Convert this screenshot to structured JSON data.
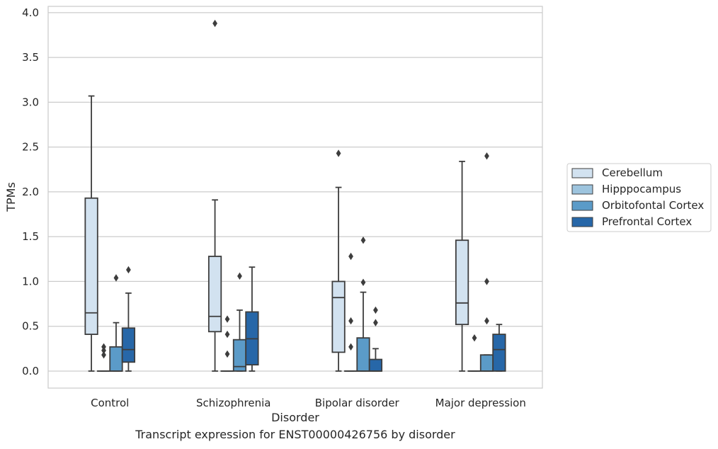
{
  "chart_data": {
    "type": "box",
    "caption": "Transcript expression for ENST00000426756 by disorder",
    "xlabel": "Disorder",
    "ylabel": "TPMs",
    "ylim": [
      -0.19,
      4.07
    ],
    "yticks": [
      "0.0",
      "0.5",
      "1.0",
      "1.5",
      "2.0",
      "2.5",
      "3.0",
      "3.5",
      "4.0"
    ],
    "grid": true,
    "legend_position": "right",
    "categories": [
      "Control",
      "Schizophrenia",
      "Bipolar disorder",
      "Major depression"
    ],
    "series": [
      {
        "name": "Cerebellum",
        "color": "#d2e2f0",
        "boxes": [
          {
            "whisker_low": 0.0,
            "q1": 0.41,
            "median": 0.65,
            "q3": 1.93,
            "whisker_high": 3.07,
            "outliers": []
          },
          {
            "whisker_low": 0.0,
            "q1": 0.44,
            "median": 0.61,
            "q3": 1.28,
            "whisker_high": 1.91,
            "outliers": [
              3.88
            ]
          },
          {
            "whisker_low": 0.0,
            "q1": 0.21,
            "median": 0.82,
            "q3": 1.0,
            "whisker_high": 2.05,
            "outliers": [
              2.43
            ]
          },
          {
            "whisker_low": 0.0,
            "q1": 0.52,
            "median": 0.76,
            "q3": 1.46,
            "whisker_high": 2.34,
            "outliers": []
          }
        ]
      },
      {
        "name": "Hipppocampus",
        "color": "#9dc4de",
        "boxes": [
          {
            "whisker_low": 0.0,
            "q1": 0.0,
            "median": 0.0,
            "q3": 0.0,
            "whisker_high": 0.0,
            "outliers": [
              0.18,
              0.23,
              0.27
            ]
          },
          {
            "whisker_low": 0.0,
            "q1": 0.0,
            "median": 0.0,
            "q3": 0.0,
            "whisker_high": 0.0,
            "outliers": [
              0.19,
              0.41,
              0.58
            ]
          },
          {
            "whisker_low": 0.0,
            "q1": 0.0,
            "median": 0.0,
            "q3": 0.0,
            "whisker_high": 0.0,
            "outliers": [
              0.27,
              0.56,
              1.28
            ]
          },
          {
            "whisker_low": 0.0,
            "q1": 0.0,
            "median": 0.0,
            "q3": 0.0,
            "whisker_high": 0.0,
            "outliers": [
              0.37
            ]
          }
        ]
      },
      {
        "name": "Orbitofontal Cortex",
        "color": "#5b9bc8",
        "boxes": [
          {
            "whisker_low": 0.0,
            "q1": 0.0,
            "median": 0.0,
            "q3": 0.27,
            "whisker_high": 0.54,
            "outliers": [
              1.04
            ]
          },
          {
            "whisker_low": 0.0,
            "q1": 0.0,
            "median": 0.05,
            "q3": 0.35,
            "whisker_high": 0.68,
            "outliers": [
              1.06
            ]
          },
          {
            "whisker_low": 0.0,
            "q1": 0.0,
            "median": 0.0,
            "q3": 0.37,
            "whisker_high": 0.88,
            "outliers": [
              0.99,
              1.46
            ]
          },
          {
            "whisker_low": 0.0,
            "q1": 0.0,
            "median": 0.0,
            "q3": 0.18,
            "whisker_high": 0.18,
            "outliers": [
              0.56,
              1.0,
              2.4
            ]
          }
        ]
      },
      {
        "name": "Prefrontal Cortex",
        "color": "#2767a8",
        "boxes": [
          {
            "whisker_low": 0.0,
            "q1": 0.1,
            "median": 0.24,
            "q3": 0.48,
            "whisker_high": 0.87,
            "outliers": [
              1.13
            ]
          },
          {
            "whisker_low": 0.0,
            "q1": 0.07,
            "median": 0.36,
            "q3": 0.66,
            "whisker_high": 1.16,
            "outliers": []
          },
          {
            "whisker_low": 0.0,
            "q1": 0.0,
            "median": 0.0,
            "q3": 0.13,
            "whisker_high": 0.25,
            "outliers": [
              0.54,
              0.68
            ]
          },
          {
            "whisker_low": 0.0,
            "q1": 0.0,
            "median": 0.24,
            "q3": 0.41,
            "whisker_high": 0.52,
            "outliers": []
          }
        ]
      }
    ]
  }
}
